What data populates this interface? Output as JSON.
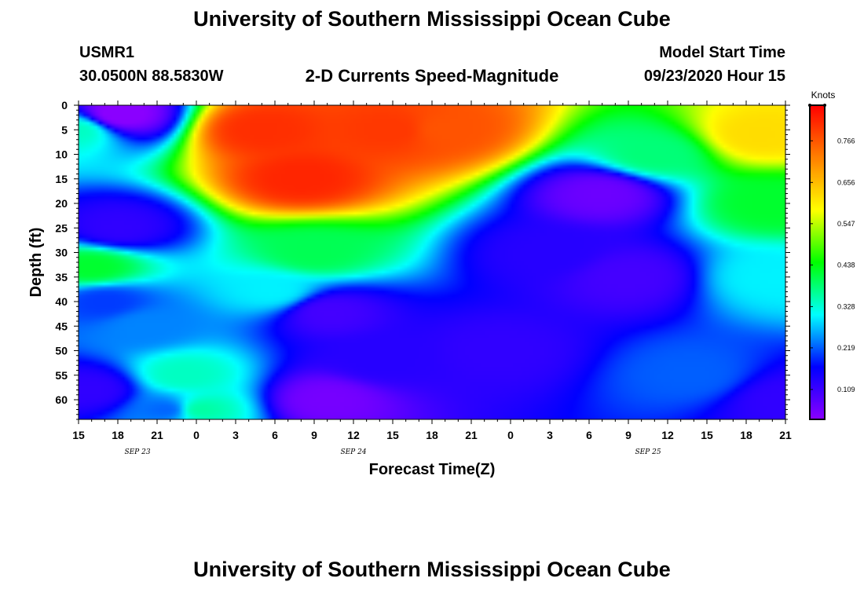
{
  "header": {
    "title": "University of Southern Mississippi Ocean Cube",
    "station": "USMR1",
    "coords": "30.0500N 88.5830W",
    "subtitle": "2-D Currents Speed-Magnitude",
    "model_label": "Model Start Time",
    "model_time": "09/23/2020 Hour 15"
  },
  "footer": {
    "title": "University of Southern Mississippi Ocean Cube"
  },
  "chart_data": {
    "type": "heatmap",
    "title": "2-D Currents Speed-Magnitude",
    "xlabel": "Forecast Time(Z)",
    "ylabel": "Depth (ft)",
    "x_ticks": [
      "15",
      "18",
      "21",
      "0",
      "3",
      "6",
      "9",
      "12",
      "15",
      "18",
      "21",
      "0",
      "3",
      "6",
      "9",
      "12",
      "15",
      "18",
      "21"
    ],
    "x_range_hours": [
      0,
      54
    ],
    "date_labels": [
      {
        "label": "SEP 23",
        "hour": 4.5
      },
      {
        "label": "SEP 24",
        "hour": 21
      },
      {
        "label": "SEP 25",
        "hour": 43.5
      }
    ],
    "y_ticks": [
      0,
      5,
      10,
      15,
      20,
      25,
      30,
      35,
      40,
      45,
      50,
      55,
      60
    ],
    "ylim": [
      0,
      64
    ],
    "y_inverted": true,
    "colorbar": {
      "unit": "Knots",
      "ticks": [
        "0.766",
        "0.656",
        "0.547",
        "0.438",
        "0.328",
        "0.219",
        "0.109"
      ],
      "tick_values": [
        0.766,
        0.656,
        0.547,
        0.438,
        0.328,
        0.219,
        0.109
      ],
      "range": [
        0.03,
        0.86
      ],
      "colormap": [
        "#8a00ff",
        "#0000ff",
        "#00ffff",
        "#00ff00",
        "#ffff00",
        "#ff8000",
        "#ff0000"
      ]
    },
    "field_points_knots": [
      {
        "hour": 3,
        "depth": 2,
        "value": 0.02
      },
      {
        "hour": 3,
        "depth": 25,
        "value": 0.12
      },
      {
        "hour": 2,
        "depth": 40,
        "value": 0.2
      },
      {
        "hour": 5,
        "depth": 45,
        "value": 0.24
      },
      {
        "hour": 1,
        "depth": 58,
        "value": 0.12
      },
      {
        "hour": 7,
        "depth": 62,
        "value": 0.22
      },
      {
        "hour": 0,
        "depth": 5,
        "value": 0.34
      },
      {
        "hour": 1,
        "depth": 33,
        "value": 0.42
      },
      {
        "hour": 8,
        "depth": 55,
        "value": 0.34
      },
      {
        "hour": 9,
        "depth": 62,
        "value": 0.36
      },
      {
        "hour": 14,
        "depth": 5,
        "value": 0.81
      },
      {
        "hour": 17,
        "depth": 15,
        "value": 0.82
      },
      {
        "hour": 24,
        "depth": 5,
        "value": 0.8
      },
      {
        "hour": 28,
        "depth": 5,
        "value": 0.77
      },
      {
        "hour": 18,
        "depth": 30,
        "value": 0.4
      },
      {
        "hour": 15,
        "depth": 38,
        "value": 0.3
      },
      {
        "hour": 19,
        "depth": 42,
        "value": 0.1
      },
      {
        "hour": 19,
        "depth": 60,
        "value": 0.05
      },
      {
        "hour": 23,
        "depth": 52,
        "value": 0.13
      },
      {
        "hour": 32,
        "depth": 50,
        "value": 0.12
      },
      {
        "hour": 36,
        "depth": 30,
        "value": 0.13
      },
      {
        "hour": 40,
        "depth": 18,
        "value": 0.06
      },
      {
        "hour": 42,
        "depth": 35,
        "value": 0.1
      },
      {
        "hour": 44,
        "depth": 10,
        "value": 0.38
      },
      {
        "hour": 47,
        "depth": 55,
        "value": 0.22
      },
      {
        "hour": 52,
        "depth": 6,
        "value": 0.62
      },
      {
        "hour": 53,
        "depth": 20,
        "value": 0.42
      },
      {
        "hour": 53,
        "depth": 35,
        "value": 0.3
      },
      {
        "hour": 54,
        "depth": 60,
        "value": 0.12
      }
    ]
  }
}
